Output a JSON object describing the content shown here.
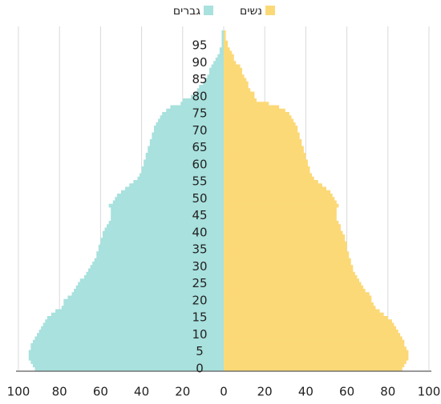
{
  "chart_data": {
    "type": "pyramid",
    "series": [
      {
        "name": "גברים",
        "color": "#a8e1de",
        "values": [
          -92,
          -93,
          -94,
          -95,
          -95,
          -95,
          -94,
          -94,
          -93,
          -92,
          -91,
          -90,
          -89,
          -88,
          -87,
          -86,
          -84,
          -82,
          -79,
          -78,
          -78,
          -76,
          -74,
          -73,
          -72,
          -71,
          -70,
          -68,
          -67,
          -66,
          -65,
          -64,
          -63,
          -62,
          -62,
          -61,
          -61,
          -60,
          -60,
          -59,
          -59,
          -58,
          -57,
          -56,
          -55,
          -55,
          -55,
          -55,
          -56,
          -54,
          -53,
          -52,
          -50,
          -48,
          -46,
          -44,
          -42,
          -41,
          -40,
          -40,
          -39,
          -39,
          -38,
          -38,
          -37,
          -37,
          -36,
          -36,
          -35,
          -35,
          -34,
          -34,
          -33,
          -32,
          -31,
          -30,
          -28,
          -26,
          -21,
          -20,
          -16,
          -14,
          -13,
          -12,
          -10,
          -9,
          -8,
          -7,
          -7,
          -6,
          -5,
          -4,
          -3,
          -2,
          -2,
          -1,
          -1,
          -1,
          -1,
          -1
        ]
      },
      {
        "name": "נשים",
        "color": "#fcd977",
        "values": [
          87,
          88,
          89,
          90,
          90,
          90,
          89,
          88,
          88,
          87,
          86,
          85,
          84,
          83,
          82,
          80,
          78,
          76,
          74,
          73,
          72,
          72,
          71,
          69,
          68,
          67,
          66,
          65,
          64,
          63,
          63,
          62,
          62,
          61,
          61,
          60,
          60,
          60,
          59,
          59,
          58,
          57,
          57,
          56,
          55,
          55,
          55,
          55,
          56,
          55,
          54,
          53,
          52,
          50,
          48,
          46,
          44,
          43,
          42,
          42,
          41,
          41,
          40,
          40,
          39,
          39,
          38,
          38,
          37,
          37,
          36,
          36,
          35,
          34,
          33,
          32,
          30,
          27,
          22,
          16,
          15,
          15,
          13,
          12,
          12,
          11,
          10,
          9,
          9,
          8,
          6,
          5,
          5,
          4,
          3,
          2,
          2,
          1,
          1,
          1
        ]
      }
    ],
    "y": [
      0,
      1,
      2,
      3,
      4,
      5,
      6,
      7,
      8,
      9,
      10,
      11,
      12,
      13,
      14,
      15,
      16,
      17,
      18,
      19,
      20,
      21,
      22,
      23,
      24,
      25,
      26,
      27,
      28,
      29,
      30,
      31,
      32,
      33,
      34,
      35,
      36,
      37,
      38,
      39,
      40,
      41,
      42,
      43,
      44,
      45,
      46,
      47,
      48,
      49,
      50,
      51,
      52,
      53,
      54,
      55,
      56,
      57,
      58,
      59,
      60,
      61,
      62,
      63,
      64,
      65,
      66,
      67,
      68,
      69,
      70,
      71,
      72,
      73,
      74,
      75,
      76,
      77,
      78,
      79,
      80,
      81,
      82,
      83,
      84,
      85,
      86,
      87,
      88,
      89,
      90,
      91,
      92,
      93,
      94,
      95,
      96,
      97,
      98,
      99
    ],
    "ylim": [
      -0.5,
      99.5
    ],
    "yticks": [
      0,
      5,
      10,
      15,
      20,
      25,
      30,
      35,
      40,
      45,
      50,
      55,
      60,
      65,
      70,
      75,
      80,
      85,
      90,
      95
    ],
    "xlim": [
      -100,
      100
    ],
    "xticks": [
      {
        "value": -100,
        "label": "100"
      },
      {
        "value": -80,
        "label": "80"
      },
      {
        "value": -60,
        "label": "60"
      },
      {
        "value": -40,
        "label": "40"
      },
      {
        "value": -20,
        "label": "20"
      },
      0,
      20,
      40,
      60,
      80,
      100
    ],
    "grid": true
  }
}
